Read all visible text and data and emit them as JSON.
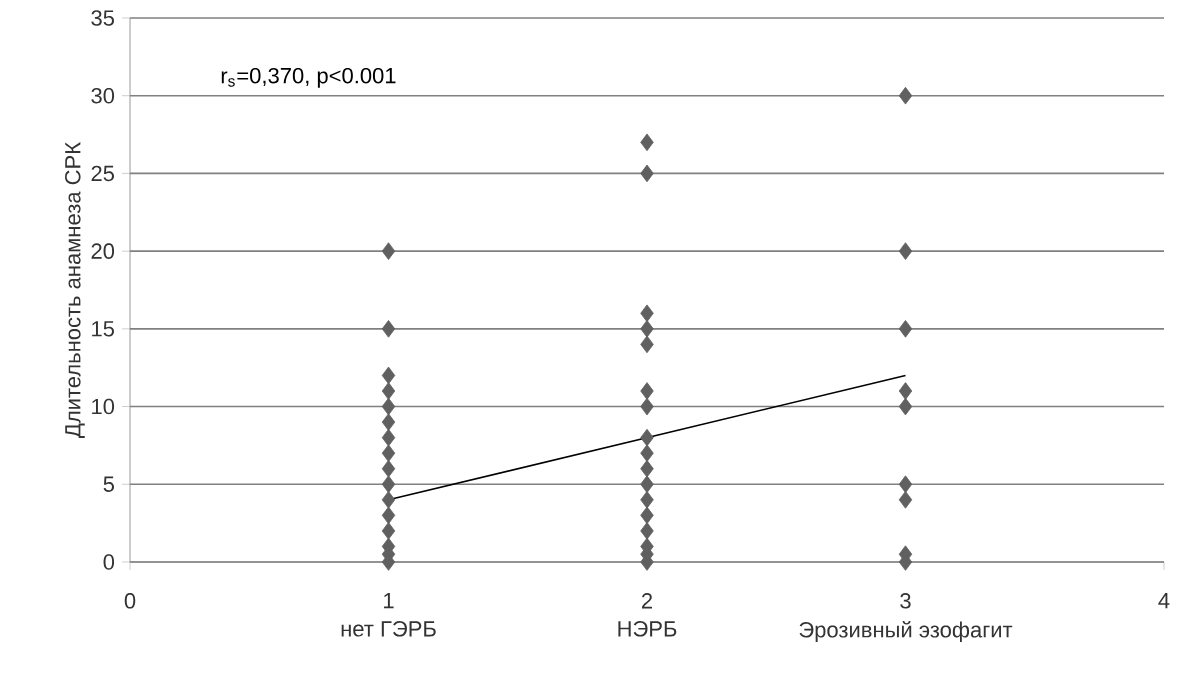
{
  "chart_data": {
    "type": "scatter",
    "ylabel": "Длительность анамнеза СРК",
    "xlim": [
      0,
      4
    ],
    "xticks": [
      0,
      1,
      2,
      3,
      4
    ],
    "ylim": [
      0,
      35
    ],
    "yticks": [
      0,
      5,
      10,
      15,
      20,
      25,
      30,
      35
    ],
    "grid": "y",
    "series": [
      {
        "marker": "diamond",
        "color": "#606060",
        "x": [
          1,
          1,
          1,
          1,
          1,
          1,
          1,
          1,
          1,
          1,
          1,
          1,
          1,
          1,
          1,
          1,
          2,
          2,
          2,
          2,
          2,
          2,
          2,
          2,
          2,
          2,
          2,
          2,
          2,
          2,
          2,
          2,
          2,
          3,
          3,
          3,
          3,
          3,
          3,
          3,
          3,
          3
        ],
        "values": [
          20,
          15,
          12,
          11,
          10,
          9,
          8,
          7,
          6,
          5,
          4,
          3,
          2,
          1,
          0.5,
          0,
          27,
          25,
          16,
          15,
          14,
          11,
          10,
          8,
          7,
          6,
          5,
          4,
          3,
          2,
          1,
          0.5,
          0,
          30,
          20,
          15,
          11,
          10,
          5,
          4,
          0.5,
          0
        ]
      },
      {
        "type": "line",
        "marker": "none",
        "color": "#000000",
        "x": [
          1,
          3
        ],
        "values": [
          4,
          12
        ]
      }
    ],
    "annotations": [
      "r$_{s}$=0,370, p<0.001",
      "нет ГЭРБ",
      "НЭРБ",
      "Эрозивный эзофагит"
    ]
  }
}
